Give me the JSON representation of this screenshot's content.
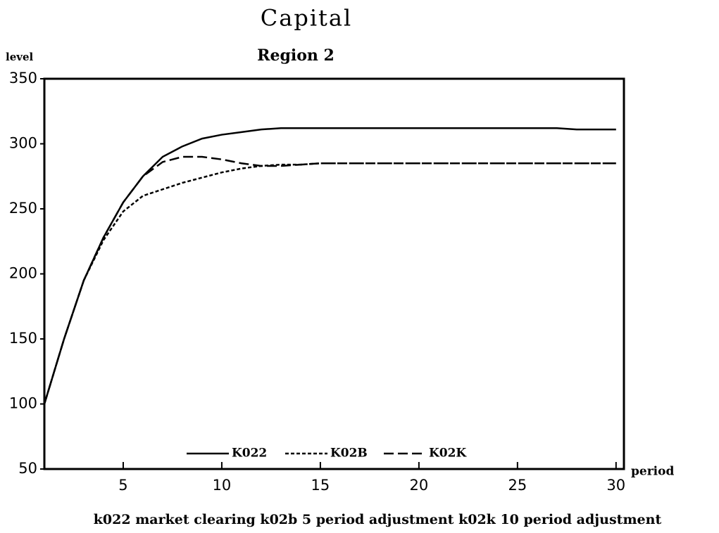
{
  "chart_data": {
    "type": "line",
    "title": "Capital",
    "subtitle": "Region 2",
    "y_label": "level",
    "x_label": "period",
    "caption": "k022 market clearing k02b 5 period adjustment k02k 10 period adjustment",
    "x": [
      1,
      2,
      3,
      4,
      5,
      6,
      7,
      8,
      9,
      10,
      11,
      12,
      13,
      14,
      15,
      16,
      17,
      18,
      19,
      20,
      21,
      22,
      23,
      24,
      25,
      26,
      27,
      28,
      29,
      30
    ],
    "series": [
      {
        "name": "K022",
        "color": "#000000",
        "dash": "solid",
        "values": [
          100,
          150,
          195,
          228,
          255,
          275,
          290,
          298,
          304,
          307,
          309,
          311,
          312,
          312,
          312,
          312,
          312,
          312,
          312,
          312,
          312,
          312,
          312,
          312,
          312,
          312,
          312,
          311,
          311,
          311
        ]
      },
      {
        "name": "K02B",
        "color": "#000000",
        "dash": "short",
        "values": [
          100,
          150,
          195,
          226,
          248,
          260,
          265,
          270,
          274,
          278,
          281,
          283,
          284,
          284,
          285,
          285,
          285,
          285,
          285,
          285,
          285,
          285,
          285,
          285,
          285,
          285,
          285,
          285,
          285,
          285
        ]
      },
      {
        "name": "K02K",
        "color": "#000000",
        "dash": "long",
        "values": [
          100,
          150,
          195,
          228,
          255,
          275,
          286,
          290,
          290,
          288,
          285,
          283,
          283,
          284,
          285,
          285,
          285,
          285,
          285,
          285,
          285,
          285,
          285,
          285,
          285,
          285,
          285,
          285,
          285,
          285
        ]
      }
    ],
    "xlim": [
      1,
      30.4
    ],
    "ylim": [
      50,
      350
    ],
    "xticks": [
      5,
      10,
      15,
      20,
      25,
      30
    ],
    "yticks": [
      50,
      100,
      150,
      200,
      250,
      300,
      350
    ],
    "legend": "bottom"
  }
}
